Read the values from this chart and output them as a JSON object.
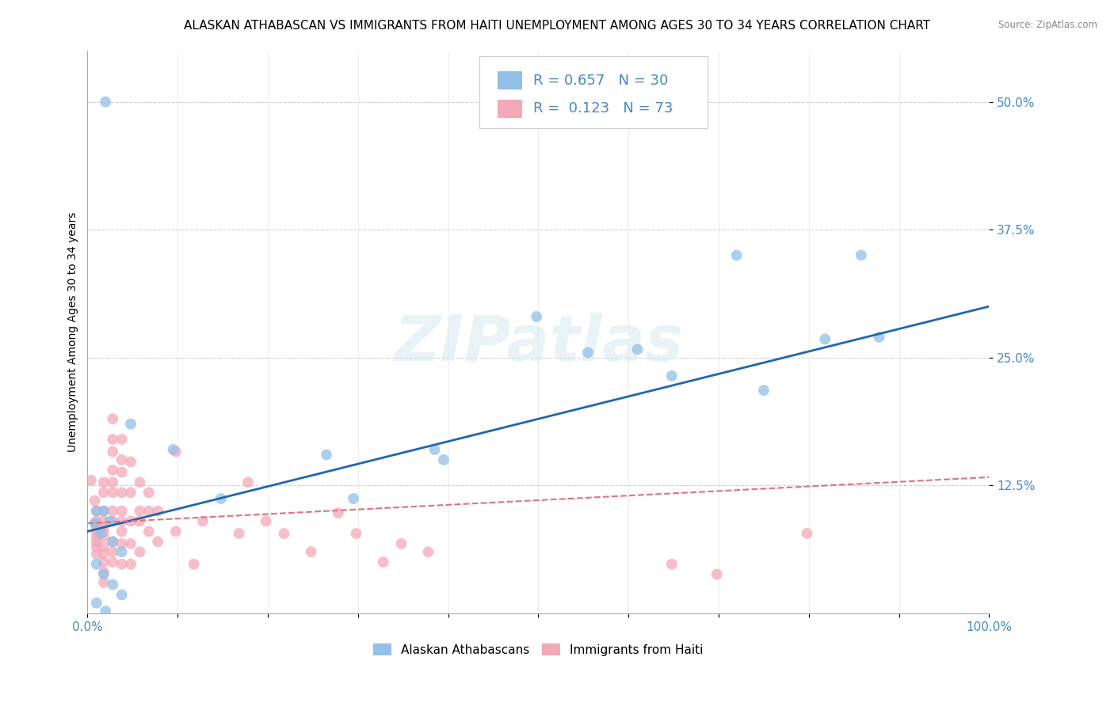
{
  "title": "ALASKAN ATHABASCAN VS IMMIGRANTS FROM HAITI UNEMPLOYMENT AMONG AGES 30 TO 34 YEARS CORRELATION CHART",
  "source": "Source: ZipAtlas.com",
  "ylabel": "Unemployment Among Ages 30 to 34 years",
  "xlim": [
    0,
    1.0
  ],
  "ylim": [
    0,
    0.55
  ],
  "yticks": [
    0.125,
    0.25,
    0.375,
    0.5
  ],
  "ytick_labels": [
    "12.5%",
    "25.0%",
    "37.5%",
    "50.0%"
  ],
  "R_blue": 0.657,
  "N_blue": 30,
  "R_pink": 0.123,
  "N_pink": 73,
  "blue_color": "#92c0e8",
  "pink_color": "#f4a8b8",
  "trend_blue_color": "#2166ac",
  "trend_pink_color": "#e07080",
  "tick_color": "#4488cc",
  "background_color": "#ffffff",
  "grid_color": "#cccccc",
  "blue_scatter": [
    [
      0.02,
      0.5
    ],
    [
      0.048,
      0.185
    ],
    [
      0.018,
      0.1
    ],
    [
      0.01,
      0.1
    ],
    [
      0.025,
      0.09
    ],
    [
      0.008,
      0.088
    ],
    [
      0.015,
      0.078
    ],
    [
      0.028,
      0.07
    ],
    [
      0.038,
      0.06
    ],
    [
      0.01,
      0.048
    ],
    [
      0.018,
      0.038
    ],
    [
      0.028,
      0.028
    ],
    [
      0.038,
      0.018
    ],
    [
      0.01,
      0.01
    ],
    [
      0.02,
      0.002
    ],
    [
      0.095,
      0.16
    ],
    [
      0.148,
      0.112
    ],
    [
      0.265,
      0.155
    ],
    [
      0.295,
      0.112
    ],
    [
      0.385,
      0.16
    ],
    [
      0.395,
      0.15
    ],
    [
      0.498,
      0.29
    ],
    [
      0.555,
      0.255
    ],
    [
      0.61,
      0.258
    ],
    [
      0.648,
      0.232
    ],
    [
      0.72,
      0.35
    ],
    [
      0.75,
      0.218
    ],
    [
      0.818,
      0.268
    ],
    [
      0.858,
      0.35
    ],
    [
      0.878,
      0.27
    ]
  ],
  "pink_scatter": [
    [
      0.004,
      0.13
    ],
    [
      0.008,
      0.11
    ],
    [
      0.01,
      0.1
    ],
    [
      0.01,
      0.09
    ],
    [
      0.01,
      0.085
    ],
    [
      0.01,
      0.08
    ],
    [
      0.01,
      0.075
    ],
    [
      0.01,
      0.07
    ],
    [
      0.01,
      0.065
    ],
    [
      0.01,
      0.058
    ],
    [
      0.018,
      0.128
    ],
    [
      0.018,
      0.118
    ],
    [
      0.018,
      0.1
    ],
    [
      0.018,
      0.09
    ],
    [
      0.018,
      0.085
    ],
    [
      0.018,
      0.08
    ],
    [
      0.018,
      0.075
    ],
    [
      0.018,
      0.065
    ],
    [
      0.018,
      0.058
    ],
    [
      0.018,
      0.05
    ],
    [
      0.018,
      0.04
    ],
    [
      0.018,
      0.03
    ],
    [
      0.028,
      0.19
    ],
    [
      0.028,
      0.17
    ],
    [
      0.028,
      0.158
    ],
    [
      0.028,
      0.14
    ],
    [
      0.028,
      0.128
    ],
    [
      0.028,
      0.118
    ],
    [
      0.028,
      0.1
    ],
    [
      0.028,
      0.09
    ],
    [
      0.028,
      0.07
    ],
    [
      0.028,
      0.06
    ],
    [
      0.028,
      0.05
    ],
    [
      0.038,
      0.17
    ],
    [
      0.038,
      0.15
    ],
    [
      0.038,
      0.138
    ],
    [
      0.038,
      0.118
    ],
    [
      0.038,
      0.1
    ],
    [
      0.038,
      0.09
    ],
    [
      0.038,
      0.08
    ],
    [
      0.038,
      0.068
    ],
    [
      0.038,
      0.048
    ],
    [
      0.048,
      0.148
    ],
    [
      0.048,
      0.118
    ],
    [
      0.048,
      0.09
    ],
    [
      0.048,
      0.068
    ],
    [
      0.048,
      0.048
    ],
    [
      0.058,
      0.128
    ],
    [
      0.058,
      0.1
    ],
    [
      0.058,
      0.09
    ],
    [
      0.058,
      0.06
    ],
    [
      0.068,
      0.118
    ],
    [
      0.068,
      0.1
    ],
    [
      0.068,
      0.08
    ],
    [
      0.078,
      0.1
    ],
    [
      0.078,
      0.07
    ],
    [
      0.098,
      0.158
    ],
    [
      0.098,
      0.08
    ],
    [
      0.118,
      0.048
    ],
    [
      0.128,
      0.09
    ],
    [
      0.168,
      0.078
    ],
    [
      0.178,
      0.128
    ],
    [
      0.198,
      0.09
    ],
    [
      0.218,
      0.078
    ],
    [
      0.248,
      0.06
    ],
    [
      0.278,
      0.098
    ],
    [
      0.298,
      0.078
    ],
    [
      0.328,
      0.05
    ],
    [
      0.348,
      0.068
    ],
    [
      0.378,
      0.06
    ],
    [
      0.648,
      0.048
    ],
    [
      0.698,
      0.038
    ],
    [
      0.798,
      0.078
    ]
  ],
  "blue_line_x": [
    0.0,
    1.0
  ],
  "blue_line_y": [
    0.08,
    0.3
  ],
  "pink_line_x": [
    0.0,
    1.0
  ],
  "pink_line_y": [
    0.088,
    0.133
  ],
  "watermark": "ZIPatlas",
  "title_fontsize": 11,
  "axis_label_fontsize": 10,
  "tick_fontsize": 11,
  "legend_label_blue": "Alaskan Athabascans",
  "legend_label_pink": "Immigrants from Haiti"
}
